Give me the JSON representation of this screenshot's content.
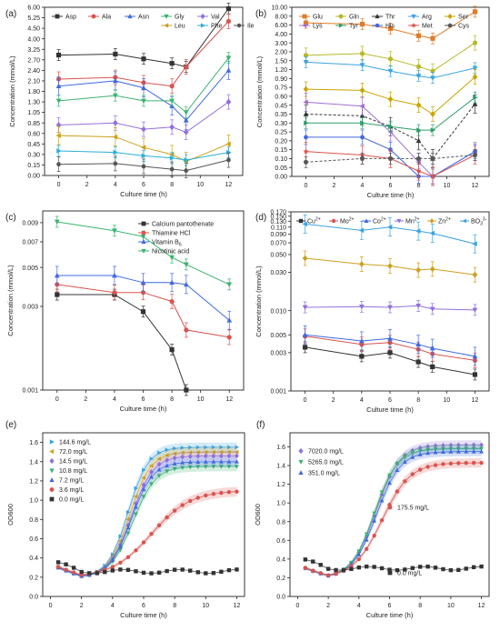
{
  "chart_data": [
    {
      "panel": "(a)",
      "type": "line",
      "ylabel": "Concentration (mmol/L)",
      "xlabel": "Culture time (h)",
      "scale": "segmented",
      "ylim": [
        0.0,
        6.0
      ],
      "yticks": [
        0.0,
        0.15,
        0.3,
        0.45,
        0.6,
        0.85,
        1.05,
        1.3,
        1.8,
        2.1,
        2.4,
        2.7,
        3.25,
        4.0,
        4.5,
        5.25,
        6.0
      ],
      "yticklabels": [
        "0.00",
        "0.15",
        "0.30",
        "0.45",
        "0.60",
        "0.85",
        "1.05",
        "1.30",
        "1.80",
        "2.10",
        "2.40",
        "2.70",
        "3.25",
        "4.00",
        "4.50",
        "5.25",
        "6.00"
      ],
      "x": [
        0,
        4,
        6,
        8,
        9,
        12
      ],
      "xticks": [
        0,
        2,
        4,
        6,
        8,
        10,
        12
      ],
      "xlim": [
        -1,
        13
      ],
      "legend_position": "top",
      "series": [
        {
          "name": "Asp",
          "color": "#333333",
          "marker": "square",
          "values": [
            2.95,
            3.0,
            2.75,
            2.6,
            2.5,
            5.9
          ]
        },
        {
          "name": "Ala",
          "color": "#d9534f",
          "marker": "circle",
          "values": [
            2.15,
            2.2,
            2.05,
            1.95,
            2.5,
            5.0
          ]
        },
        {
          "name": "Asn",
          "color": "#4169e1",
          "marker": "triangle-up",
          "values": [
            1.95,
            2.1,
            1.9,
            1.2,
            0.9,
            2.4
          ]
        },
        {
          "name": "Gly",
          "color": "#3cb371",
          "marker": "triangle-down",
          "values": [
            1.35,
            1.6,
            1.35,
            1.35,
            1.05,
            2.8
          ]
        },
        {
          "name": "Val",
          "color": "#9370db",
          "marker": "diamond",
          "values": [
            0.8,
            0.85,
            0.7,
            0.75,
            0.63,
            1.3
          ]
        },
        {
          "name": "Leu",
          "color": "#cda01f",
          "marker": "triangle-left",
          "values": [
            0.57,
            0.55,
            0.4,
            0.3,
            0.2,
            0.45
          ]
        },
        {
          "name": "Phe",
          "color": "#2bb0d8",
          "marker": "triangle-right",
          "values": [
            0.35,
            0.33,
            0.28,
            0.25,
            0.22,
            0.33
          ]
        },
        {
          "name": "Ile",
          "color": "#555555",
          "marker": "hexagon",
          "values": [
            0.16,
            0.17,
            0.13,
            0.09,
            0.07,
            0.22
          ]
        }
      ]
    },
    {
      "panel": "(b)",
      "type": "line",
      "ylabel": "Concentration (mmol/L)",
      "xlabel": "Culture time (h)",
      "scale": "segmented",
      "ylim": [
        0.0,
        10.0
      ],
      "yticks": [
        0.0,
        0.05,
        0.1,
        0.15,
        0.2,
        0.25,
        0.3,
        0.35,
        0.45,
        0.6,
        0.75,
        0.9,
        1.2,
        1.5,
        2.0,
        3.0,
        4.0,
        6.0,
        8.0,
        10.0
      ],
      "yticklabels": [
        "0.00",
        "0.05",
        "0.10",
        "0.15",
        "0.20",
        "0.25",
        "0.30",
        "0.35",
        "0.45",
        "0.60",
        "0.75",
        "0.90",
        "1.20",
        "1.50",
        "2.00",
        "3.00",
        "4.00",
        "6.00",
        "8.00",
        "10.00"
      ],
      "x": [
        0,
        4,
        6,
        8,
        9,
        12
      ],
      "xticks": [
        0,
        2,
        4,
        6,
        8,
        10,
        12
      ],
      "xlim": [
        -1,
        13
      ],
      "legend_position": "top",
      "series": [
        {
          "name": "Glu",
          "color": "#e07b2a",
          "marker": "square",
          "values": [
            6.5,
            6.2,
            5.2,
            3.8,
            3.5,
            9.0
          ]
        },
        {
          "name": "Gln",
          "color": "#b5b829",
          "marker": "circle",
          "values": [
            1.8,
            1.9,
            1.6,
            1.3,
            1.15,
            3.0
          ]
        },
        {
          "name": "Thr",
          "color": "#333333",
          "marker": "triangle-up",
          "values": [
            0.35,
            0.34,
            0.28,
            0.2,
            0.1,
            0.47
          ]
        },
        {
          "name": "Arg",
          "color": "#3da3e0",
          "marker": "triangle-down",
          "values": [
            1.45,
            1.35,
            1.15,
            0.98,
            0.92,
            1.25
          ]
        },
        {
          "name": "Ser",
          "color": "#c9a400",
          "marker": "diamond",
          "values": [
            0.72,
            0.7,
            0.55,
            0.45,
            0.35,
            0.95
          ]
        },
        {
          "name": "Lys",
          "color": "#a070d0",
          "marker": "triangle-left",
          "values": [
            0.5,
            0.44,
            0.25,
            0.08,
            0.0,
            0.14
          ]
        },
        {
          "name": "Tyr",
          "color": "#2e9e6a",
          "marker": "triangle-right",
          "values": [
            0.3,
            0.3,
            0.28,
            0.26,
            0.26,
            0.58
          ]
        },
        {
          "name": "His",
          "color": "#4169e1",
          "marker": "hexagon",
          "values": [
            0.22,
            0.22,
            0.15,
            0.0,
            0.0,
            0.14
          ]
        },
        {
          "name": "Met",
          "color": "#d9534f",
          "marker": "star",
          "values": [
            0.14,
            0.12,
            0.1,
            0.03,
            0.0,
            0.12
          ]
        },
        {
          "name": "Cys",
          "color": "#555555",
          "marker": "pentagon",
          "values": [
            0.08,
            0.1,
            0.1,
            0.1,
            0.1,
            0.12
          ]
        }
      ]
    },
    {
      "panel": "(c)",
      "type": "line",
      "ylabel": "Concentration (mmol/L)",
      "xlabel": "Culture time (h)",
      "scale": "log",
      "ylim": [
        0.001,
        0.0105
      ],
      "yticks": [
        0.001,
        0.003,
        0.005,
        0.007,
        0.009
      ],
      "yticklabels": [
        "0.001",
        "0.003",
        "0.005",
        "0.007",
        "0.009"
      ],
      "x": [
        0,
        4,
        6,
        8,
        9,
        12
      ],
      "xticks": [
        0,
        2,
        4,
        6,
        8,
        10,
        12
      ],
      "xlim": [
        -1,
        13
      ],
      "legend_position": "top-right",
      "series": [
        {
          "name": "Calcium pantothenate",
          "color": "#333333",
          "marker": "square",
          "values": [
            0.0035,
            0.0035,
            0.0028,
            0.0017,
            0.0008,
            null
          ]
        },
        {
          "name": "Thiamine HCl",
          "color": "#d9534f",
          "marker": "circle",
          "values": [
            0.004,
            0.0036,
            0.0036,
            0.0032,
            0.0022,
            0.002
          ]
        },
        {
          "name": "Vitamin B",
          "subscript": "6",
          "color": "#4169e1",
          "marker": "triangle-up",
          "values": [
            0.0045,
            0.0045,
            0.0041,
            0.0041,
            0.004,
            0.0025
          ]
        },
        {
          "name": "Nicotinic acid",
          "color": "#3cb371",
          "marker": "triangle-down",
          "values": [
            0.0091,
            0.0081,
            0.0075,
            0.0057,
            0.0052,
            0.004
          ]
        }
      ]
    },
    {
      "panel": "(d)",
      "type": "line",
      "ylabel": "Concentration (mmol/L)",
      "xlabel": "Culture time (h)",
      "scale": "log",
      "ylim": [
        0.001,
        0.17
      ],
      "yticks": [
        0.001,
        0.003,
        0.005,
        0.01,
        0.03,
        0.05,
        0.07,
        0.09,
        0.11,
        0.13,
        0.15,
        0.17
      ],
      "yticklabels": [
        "0.001",
        "0.003",
        "0.005",
        "0.010",
        "0.030",
        "0.050",
        "0.070",
        "0.090",
        "0.110",
        "0.130",
        "0.150",
        "0.170"
      ],
      "x": [
        0,
        4,
        6,
        8,
        9,
        12
      ],
      "xticks": [
        0,
        2,
        4,
        6,
        8,
        10,
        12
      ],
      "xlim": [
        -1,
        13
      ],
      "legend_position": "top",
      "series": [
        {
          "name": "Cu",
          "sup": "2+",
          "color": "#333333",
          "marker": "square",
          "values": [
            0.0035,
            0.0027,
            0.003,
            0.0023,
            0.002,
            0.0016
          ]
        },
        {
          "name": "Mo",
          "sup": "2+",
          "color": "#d9534f",
          "marker": "circle",
          "values": [
            0.0048,
            0.0038,
            0.004,
            0.0033,
            0.0029,
            0.0024
          ]
        },
        {
          "name": "Co",
          "sup": "2+",
          "color": "#4169e1",
          "marker": "triangle-up",
          "values": [
            0.005,
            0.0042,
            0.0045,
            0.0038,
            0.0034,
            0.0027
          ]
        },
        {
          "name": "Mn",
          "sup": "2+",
          "color": "#9370db",
          "marker": "triangle-down",
          "values": [
            0.011,
            0.0112,
            0.011,
            0.0115,
            0.0105,
            0.0102
          ]
        },
        {
          "name": "Zn",
          "sup": "2+",
          "color": "#cda01f",
          "marker": "diamond",
          "values": [
            0.045,
            0.038,
            0.036,
            0.032,
            0.033,
            0.028
          ]
        },
        {
          "name": "BO",
          "sub": "3",
          "sup": "3-",
          "color": "#3da3e0",
          "marker": "triangle-left",
          "values": [
            0.12,
            0.1,
            0.11,
            0.098,
            0.092,
            0.068
          ]
        }
      ]
    },
    {
      "panel": "(e)",
      "type": "line",
      "ylabel": "OD600",
      "xlabel": "Culture time (h)",
      "scale": "linear",
      "ylim": [
        0.0,
        1.7
      ],
      "yticks": [
        0.0,
        0.2,
        0.4,
        0.6,
        0.8,
        1.0,
        1.2,
        1.4,
        1.6
      ],
      "xlim": [
        -0.5,
        12.5
      ],
      "xticks": [
        0,
        2,
        4,
        6,
        8,
        10,
        12
      ],
      "legend_position": "top-left",
      "series": [
        {
          "name": "144.6 mg/L",
          "color": "#3da3e0",
          "marker": "triangle-right",
          "max": 1.55,
          "mid": 5.0,
          "k": 1.55
        },
        {
          "name": "72.0 mg/L",
          "color": "#cda01f",
          "marker": "triangle-left",
          "max": 1.5,
          "mid": 5.1,
          "k": 1.5
        },
        {
          "name": "14.5 mg/L",
          "color": "#9370db",
          "marker": "diamond",
          "max": 1.46,
          "mid": 5.2,
          "k": 1.45
        },
        {
          "name": "10.8 mg/L",
          "color": "#3cb371",
          "marker": "triangle-down",
          "max": 1.35,
          "mid": 5.3,
          "k": 1.4
        },
        {
          "name": "7.2 mg/L",
          "color": "#4169e1",
          "marker": "triangle-up",
          "max": 1.4,
          "mid": 5.2,
          "k": 1.45
        },
        {
          "name": "3.6 mg/L",
          "color": "#d9534f",
          "marker": "circle",
          "max": 1.1,
          "mid": 6.5,
          "k": 0.8
        },
        {
          "name": "0.0 mg/L",
          "color": "#333333",
          "marker": "square",
          "flat": 0.26
        }
      ]
    },
    {
      "panel": "(f)",
      "type": "line",
      "ylabel": "OD600",
      "xlabel": "Culture time (h)",
      "scale": "linear",
      "ylim": [
        0.0,
        1.75
      ],
      "yticks": [
        0.0,
        0.2,
        0.4,
        0.6,
        0.8,
        1.0,
        1.2,
        1.4,
        1.6
      ],
      "xlim": [
        -0.5,
        12.5
      ],
      "xticks": [
        0,
        2,
        4,
        6,
        8,
        10,
        12
      ],
      "legend_position": "inside",
      "series": [
        {
          "name": "7020.0 mg/L",
          "color": "#9370db",
          "marker": "diamond",
          "max": 1.62,
          "mid": 5.1,
          "k": 1.3
        },
        {
          "name": "5265.0 mg/L",
          "color": "#3cb371",
          "marker": "triangle-down",
          "max": 1.58,
          "mid": 5.0,
          "k": 1.35
        },
        {
          "name": "351.0 mg/L",
          "color": "#4169e1",
          "marker": "triangle-up",
          "max": 1.55,
          "mid": 5.15,
          "k": 1.3
        },
        {
          "name": "175.5 mg/L",
          "color": "#d9534f",
          "marker": "circle",
          "max": 1.43,
          "mid": 5.5,
          "k": 1.1
        },
        {
          "name": "0.0 mg/L",
          "color": "#333333",
          "marker": "square",
          "flat": 0.3
        }
      ]
    }
  ]
}
